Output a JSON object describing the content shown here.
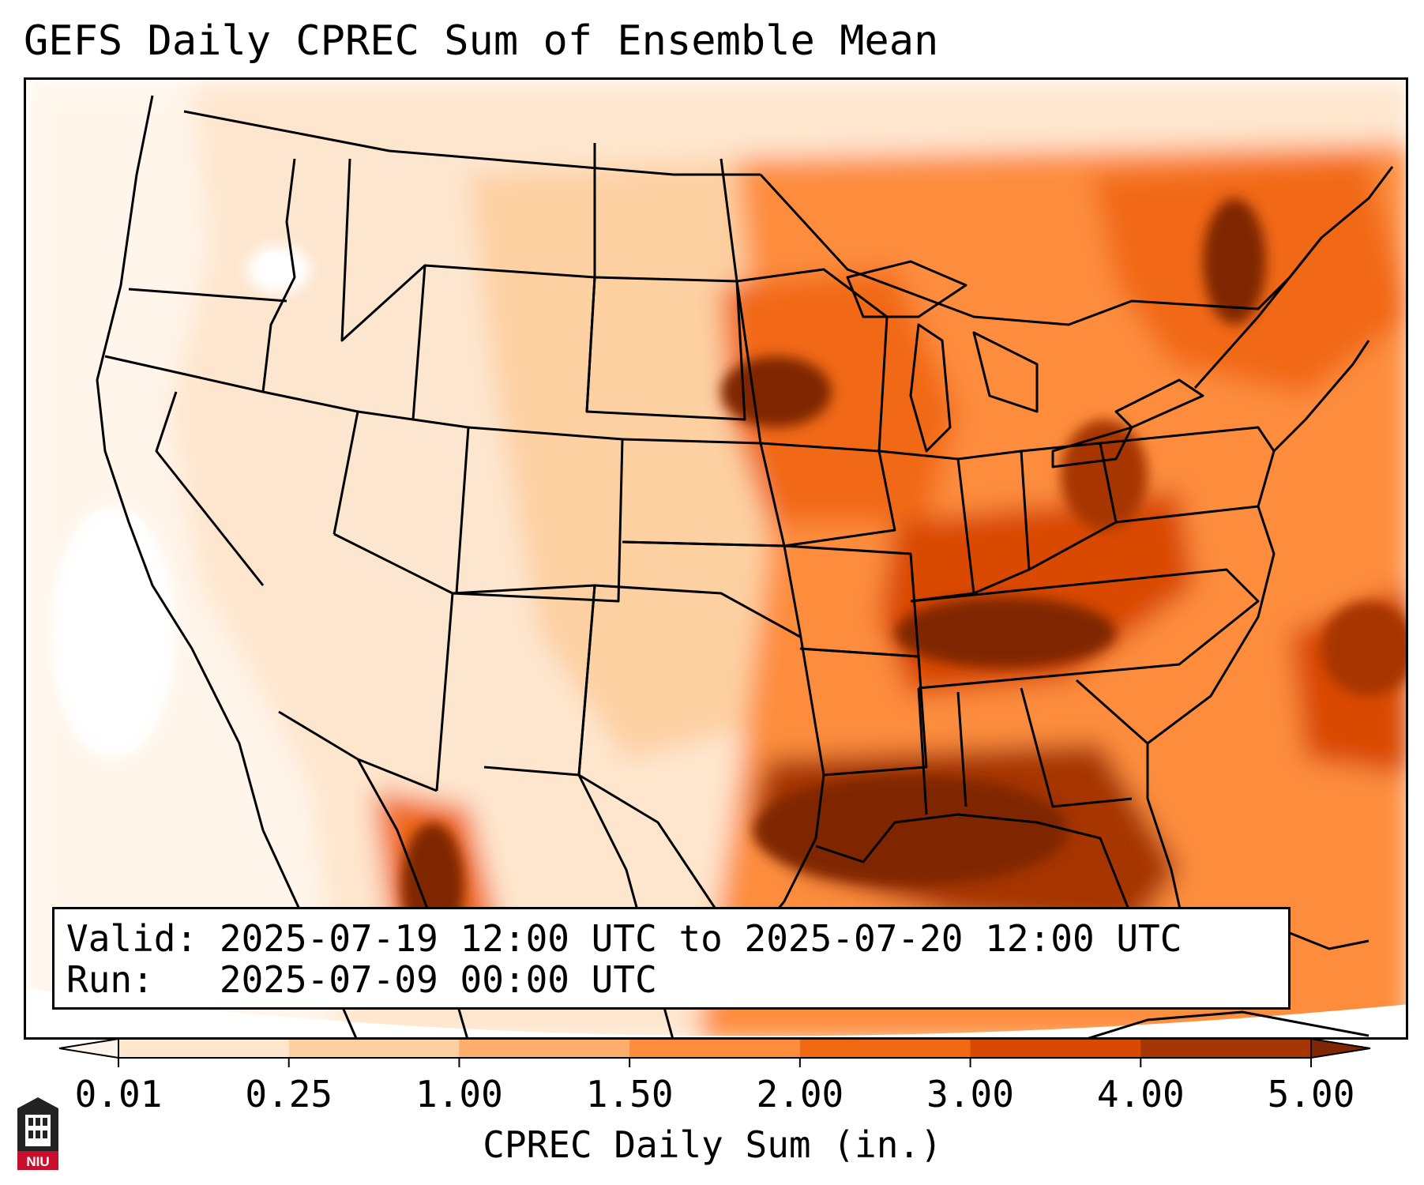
{
  "title": "GEFS Daily CPREC Sum of Ensemble Mean",
  "info": {
    "valid_label": "Valid:",
    "valid_value": "2025-07-19 12:00 UTC to 2025-07-20 12:00 UTC",
    "run_label": "Run:",
    "run_value": "2025-07-09 00:00 UTC"
  },
  "colorbar": {
    "title": "CPREC Daily Sum (in.)",
    "ticks": [
      "0.01",
      "0.25",
      "1.00",
      "1.50",
      "2.00",
      "3.00",
      "4.00",
      "5.00"
    ],
    "colors": [
      "#fff5eb",
      "#fee6ce",
      "#fdd0a2",
      "#fdae6b",
      "#fd8d3c",
      "#f16913",
      "#d94801",
      "#a63603",
      "#7f2704"
    ],
    "extend": "both"
  },
  "map": {
    "projection": "Lambert conformal, CONUS",
    "field": "CPREC daily sum of ensemble mean",
    "regions": [
      {
        "area": "Gulf Coast / Louisiana / northern Gulf of Mexico",
        "level": "4.00-5.00+"
      },
      {
        "area": "Tennessee Valley / Kentucky / West Virginia",
        "level": "3.00-5.00"
      },
      {
        "area": "Iowa / southern Minnesota",
        "level": "4.00-5.00"
      },
      {
        "area": "Eastern Ontario / St. Lawrence / New York",
        "level": "3.00-5.00"
      },
      {
        "area": "Sierra Madre Occidental, Mexico",
        "level": "3.00-5.00"
      },
      {
        "area": "Western Atlantic off Carolinas",
        "level": "2.00-4.00"
      },
      {
        "area": "Pacific coast / Great Basin",
        "level": "0.01-0.25"
      }
    ]
  },
  "logo": {
    "text": "NIU",
    "colors": {
      "red": "#c8102e",
      "dark": "#222222"
    }
  }
}
